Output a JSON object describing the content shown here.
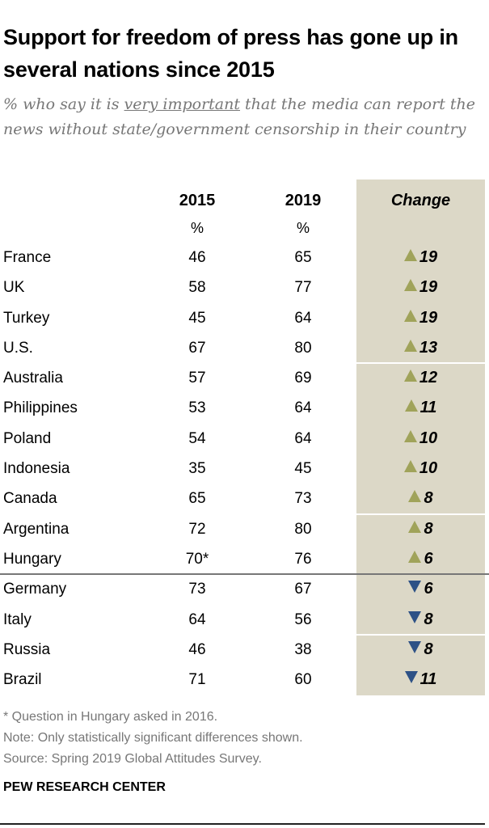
{
  "title": "Support for freedom of press has gone up in several nations since 2015",
  "subtitle": {
    "prefix": "% who say it is ",
    "emphasis": "very important",
    "suffix": " that the media can report the news without state/government censorship in their country"
  },
  "colors": {
    "up": "#a0a35a",
    "down": "#2d5186",
    "change_bg": "#dcd8c7"
  },
  "chart_data": {
    "type": "table",
    "columns": [
      "",
      "2015",
      "2019",
      "Change"
    ],
    "units": [
      "",
      "%",
      "%",
      ""
    ],
    "rows": [
      {
        "country": "France",
        "y2015": "46",
        "y2019": "65",
        "change": "19",
        "direction": "up"
      },
      {
        "country": "UK",
        "y2015": "58",
        "y2019": "77",
        "change": "19",
        "direction": "up"
      },
      {
        "country": "Turkey",
        "y2015": "45",
        "y2019": "64",
        "change": "19",
        "direction": "up"
      },
      {
        "country": "U.S.",
        "y2015": "67",
        "y2019": "80",
        "change": "13",
        "direction": "up"
      },
      {
        "country": "Australia",
        "y2015": "57",
        "y2019": "69",
        "change": "12",
        "direction": "up"
      },
      {
        "country": "Philippines",
        "y2015": "53",
        "y2019": "64",
        "change": "11",
        "direction": "up"
      },
      {
        "country": "Poland",
        "y2015": "54",
        "y2019": "64",
        "change": "10",
        "direction": "up"
      },
      {
        "country": "Indonesia",
        "y2015": "35",
        "y2019": "45",
        "change": "10",
        "direction": "up"
      },
      {
        "country": "Canada",
        "y2015": "65",
        "y2019": "73",
        "change": "8",
        "direction": "up"
      },
      {
        "country": "Argentina",
        "y2015": "72",
        "y2019": "80",
        "change": "8",
        "direction": "up"
      },
      {
        "country": "Hungary",
        "y2015": "70*",
        "y2019": "76",
        "change": "6",
        "direction": "up"
      },
      {
        "country": "Germany",
        "y2015": "73",
        "y2019": "67",
        "change": "6",
        "direction": "down"
      },
      {
        "country": "Italy",
        "y2015": "64",
        "y2019": "56",
        "change": "8",
        "direction": "down"
      },
      {
        "country": "Russia",
        "y2015": "46",
        "y2019": "38",
        "change": "8",
        "direction": "down"
      },
      {
        "country": "Brazil",
        "y2015": "71",
        "y2019": "60",
        "change": "11",
        "direction": "down"
      }
    ]
  },
  "notes": [
    "* Question in Hungary asked in 2016.",
    "Note: Only statistically significant differences shown.",
    "Source: Spring 2019 Global Attitudes Survey."
  ],
  "brand": "PEW RESEARCH CENTER"
}
